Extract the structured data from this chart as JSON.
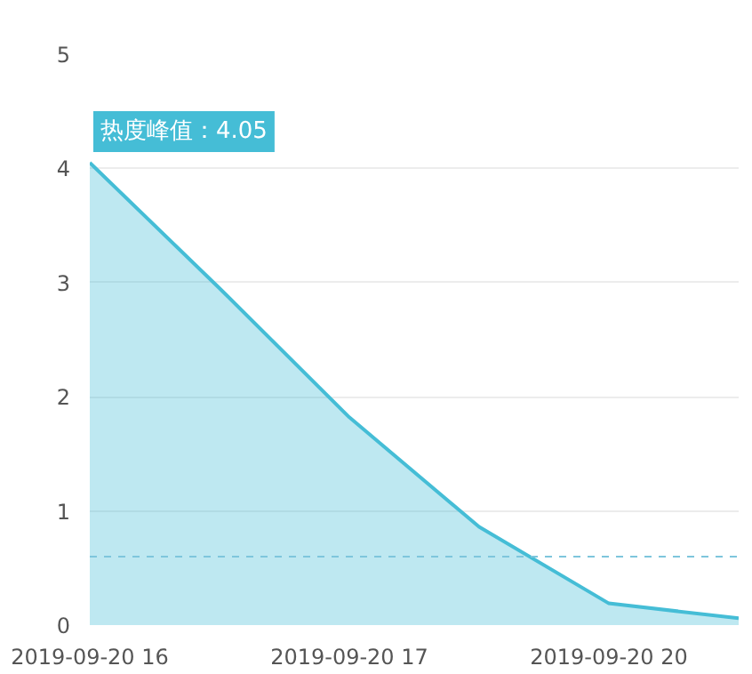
{
  "chart_data": {
    "type": "area",
    "categories": [
      "2019-09-20 16",
      null,
      "2019-09-20 17",
      null,
      "2019-09-20 20",
      null
    ],
    "series": [
      {
        "color": "#45bdd6",
        "values": [
          4.05,
          2.95,
          1.82,
          0.86,
          0.19,
          0.06
        ]
      }
    ],
    "ylim": [
      0,
      5
    ],
    "yticks": [
      0,
      1,
      2,
      3,
      4,
      5
    ],
    "grid": "y",
    "ref_lines": [
      {
        "axis": "y",
        "value": 0.6,
        "color": "#7ec6dc",
        "line_style": "dashed"
      }
    ],
    "annotations": [
      {
        "text": "热度峰值：4.05",
        "x": "2019-09-20 16",
        "y": 4.05
      }
    ]
  }
}
